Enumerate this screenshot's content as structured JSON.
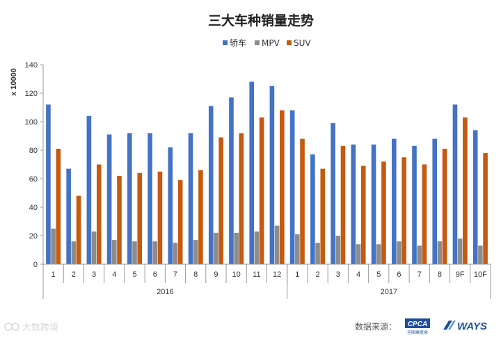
{
  "chart_data": {
    "type": "bar",
    "title": "三大车种销量走势",
    "ylabel": "x 10000",
    "ylim": [
      0,
      140
    ],
    "yticks": [
      0,
      20,
      40,
      60,
      80,
      100,
      120,
      140
    ],
    "grid": false,
    "legend_position": "top",
    "categories": [
      "1",
      "2",
      "3",
      "4",
      "5",
      "6",
      "7",
      "8",
      "9",
      "10",
      "11",
      "12",
      "1",
      "2",
      "3",
      "4",
      "5",
      "6",
      "7",
      "8",
      "9F",
      "10F"
    ],
    "groups": [
      {
        "label": "2016",
        "count": 12
      },
      {
        "label": "2017",
        "count": 10
      }
    ],
    "series": [
      {
        "name": "轿车",
        "color": "#4472C4",
        "values": [
          112,
          67,
          104,
          91,
          92,
          92,
          82,
          92,
          111,
          117,
          128,
          125,
          108,
          77,
          99,
          84,
          84,
          88,
          83,
          88,
          112,
          94
        ]
      },
      {
        "name": "MPV",
        "color": "#8C8C8C",
        "values": [
          25,
          16,
          23,
          17,
          16,
          16,
          15,
          17,
          22,
          22,
          23,
          27,
          21,
          15,
          20,
          14,
          14,
          16,
          13,
          16,
          18,
          13
        ]
      },
      {
        "name": "SUV",
        "color": "#C55A11",
        "values": [
          81,
          48,
          70,
          62,
          64,
          65,
          59,
          66,
          89,
          92,
          103,
          108,
          88,
          67,
          83,
          69,
          72,
          75,
          70,
          81,
          103,
          78
        ]
      }
    ]
  },
  "footer": {
    "source_label": "数据来源：",
    "logo1": "CPCA",
    "logo1_sub": "全国乘联会",
    "logo2": "WAYS"
  },
  "watermark": {
    "text": "大数跨境"
  }
}
